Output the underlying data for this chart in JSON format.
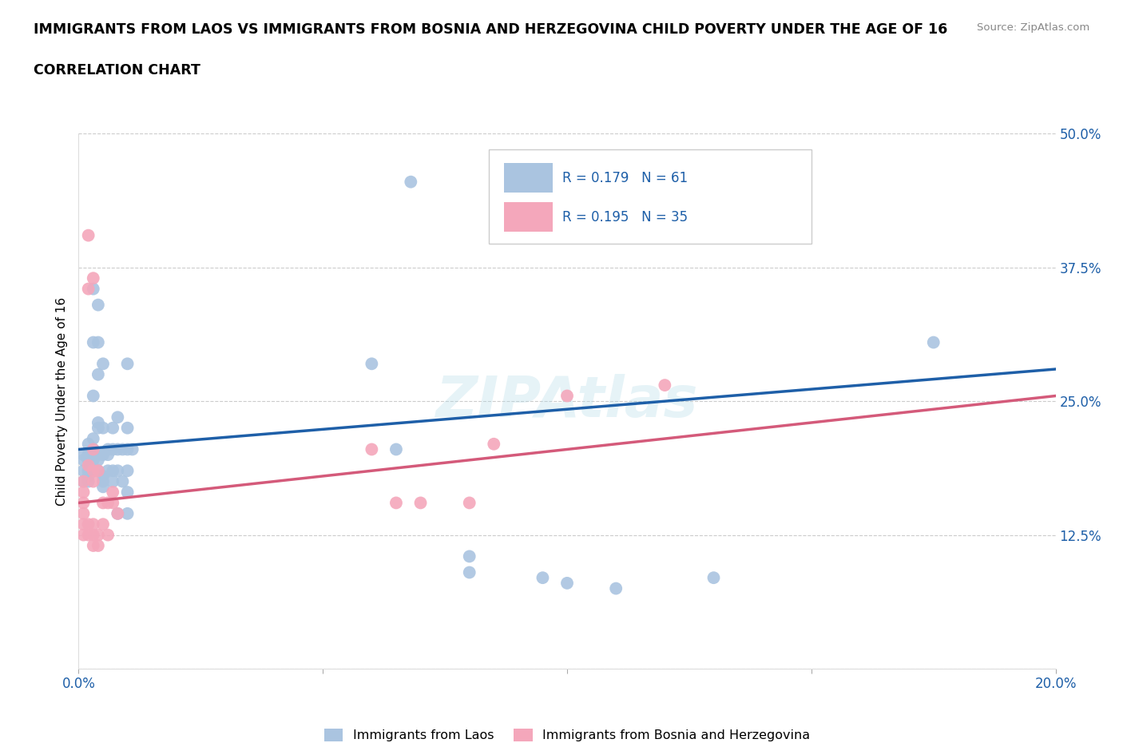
{
  "title": "IMMIGRANTS FROM LAOS VS IMMIGRANTS FROM BOSNIA AND HERZEGOVINA CHILD POVERTY UNDER THE AGE OF 16",
  "subtitle": "CORRELATION CHART",
  "source": "Source: ZipAtlas.com",
  "ylabel": "Child Poverty Under the Age of 16",
  "xlim": [
    0.0,
    0.2
  ],
  "ylim": [
    0.0,
    0.5
  ],
  "xticks": [
    0.0,
    0.05,
    0.1,
    0.15,
    0.2
  ],
  "xticklabels": [
    "0.0%",
    "",
    "",
    "",
    "20.0%"
  ],
  "yticks": [
    0.0,
    0.125,
    0.25,
    0.375,
    0.5
  ],
  "yticklabels": [
    "",
    "12.5%",
    "25.0%",
    "37.5%",
    "50.0%"
  ],
  "grid_color": "#cccccc",
  "background_color": "#ffffff",
  "watermark": "ZIPAtlas",
  "laos_color": "#aac4e0",
  "bosnia_color": "#f4a7bb",
  "laos_line_color": "#1e5fa8",
  "bosnia_line_color": "#d45a7a",
  "tick_color": "#1e5fa8",
  "laos_R": 0.179,
  "laos_N": 61,
  "bosnia_R": 0.195,
  "bosnia_N": 35,
  "laos_scatter": [
    [
      0.001,
      0.185
    ],
    [
      0.001,
      0.175
    ],
    [
      0.001,
      0.2
    ],
    [
      0.001,
      0.195
    ],
    [
      0.002,
      0.21
    ],
    [
      0.002,
      0.2
    ],
    [
      0.002,
      0.195
    ],
    [
      0.002,
      0.185
    ],
    [
      0.002,
      0.18
    ],
    [
      0.002,
      0.175
    ],
    [
      0.003,
      0.355
    ],
    [
      0.003,
      0.305
    ],
    [
      0.003,
      0.255
    ],
    [
      0.003,
      0.215
    ],
    [
      0.003,
      0.205
    ],
    [
      0.003,
      0.195
    ],
    [
      0.003,
      0.185
    ],
    [
      0.004,
      0.34
    ],
    [
      0.004,
      0.305
    ],
    [
      0.004,
      0.275
    ],
    [
      0.004,
      0.23
    ],
    [
      0.004,
      0.225
    ],
    [
      0.004,
      0.2
    ],
    [
      0.004,
      0.195
    ],
    [
      0.004,
      0.185
    ],
    [
      0.005,
      0.285
    ],
    [
      0.005,
      0.225
    ],
    [
      0.005,
      0.2
    ],
    [
      0.005,
      0.18
    ],
    [
      0.005,
      0.175
    ],
    [
      0.005,
      0.17
    ],
    [
      0.006,
      0.205
    ],
    [
      0.006,
      0.2
    ],
    [
      0.006,
      0.185
    ],
    [
      0.007,
      0.225
    ],
    [
      0.007,
      0.205
    ],
    [
      0.007,
      0.185
    ],
    [
      0.007,
      0.175
    ],
    [
      0.008,
      0.235
    ],
    [
      0.008,
      0.205
    ],
    [
      0.008,
      0.185
    ],
    [
      0.008,
      0.145
    ],
    [
      0.009,
      0.205
    ],
    [
      0.009,
      0.175
    ],
    [
      0.01,
      0.285
    ],
    [
      0.01,
      0.225
    ],
    [
      0.01,
      0.205
    ],
    [
      0.01,
      0.185
    ],
    [
      0.01,
      0.165
    ],
    [
      0.01,
      0.145
    ],
    [
      0.011,
      0.205
    ],
    [
      0.06,
      0.285
    ],
    [
      0.065,
      0.205
    ],
    [
      0.068,
      0.455
    ],
    [
      0.08,
      0.09
    ],
    [
      0.08,
      0.105
    ],
    [
      0.095,
      0.085
    ],
    [
      0.1,
      0.08
    ],
    [
      0.11,
      0.075
    ],
    [
      0.13,
      0.085
    ],
    [
      0.175,
      0.305
    ]
  ],
  "bosnia_scatter": [
    [
      0.001,
      0.175
    ],
    [
      0.001,
      0.165
    ],
    [
      0.001,
      0.155
    ],
    [
      0.001,
      0.145
    ],
    [
      0.001,
      0.135
    ],
    [
      0.001,
      0.125
    ],
    [
      0.002,
      0.405
    ],
    [
      0.002,
      0.355
    ],
    [
      0.002,
      0.135
    ],
    [
      0.002,
      0.125
    ],
    [
      0.003,
      0.365
    ],
    [
      0.003,
      0.185
    ],
    [
      0.003,
      0.175
    ],
    [
      0.003,
      0.135
    ],
    [
      0.003,
      0.125
    ],
    [
      0.003,
      0.115
    ],
    [
      0.004,
      0.185
    ],
    [
      0.004,
      0.125
    ],
    [
      0.004,
      0.115
    ],
    [
      0.005,
      0.155
    ],
    [
      0.005,
      0.135
    ],
    [
      0.006,
      0.155
    ],
    [
      0.006,
      0.125
    ],
    [
      0.007,
      0.165
    ],
    [
      0.007,
      0.155
    ],
    [
      0.008,
      0.145
    ],
    [
      0.06,
      0.205
    ],
    [
      0.065,
      0.155
    ],
    [
      0.07,
      0.155
    ],
    [
      0.08,
      0.155
    ],
    [
      0.085,
      0.21
    ],
    [
      0.1,
      0.255
    ],
    [
      0.12,
      0.265
    ],
    [
      0.002,
      0.19
    ],
    [
      0.003,
      0.205
    ]
  ],
  "laos_trendline": [
    [
      0.0,
      0.205
    ],
    [
      0.2,
      0.28
    ]
  ],
  "bosnia_trendline": [
    [
      0.0,
      0.155
    ],
    [
      0.2,
      0.255
    ]
  ]
}
